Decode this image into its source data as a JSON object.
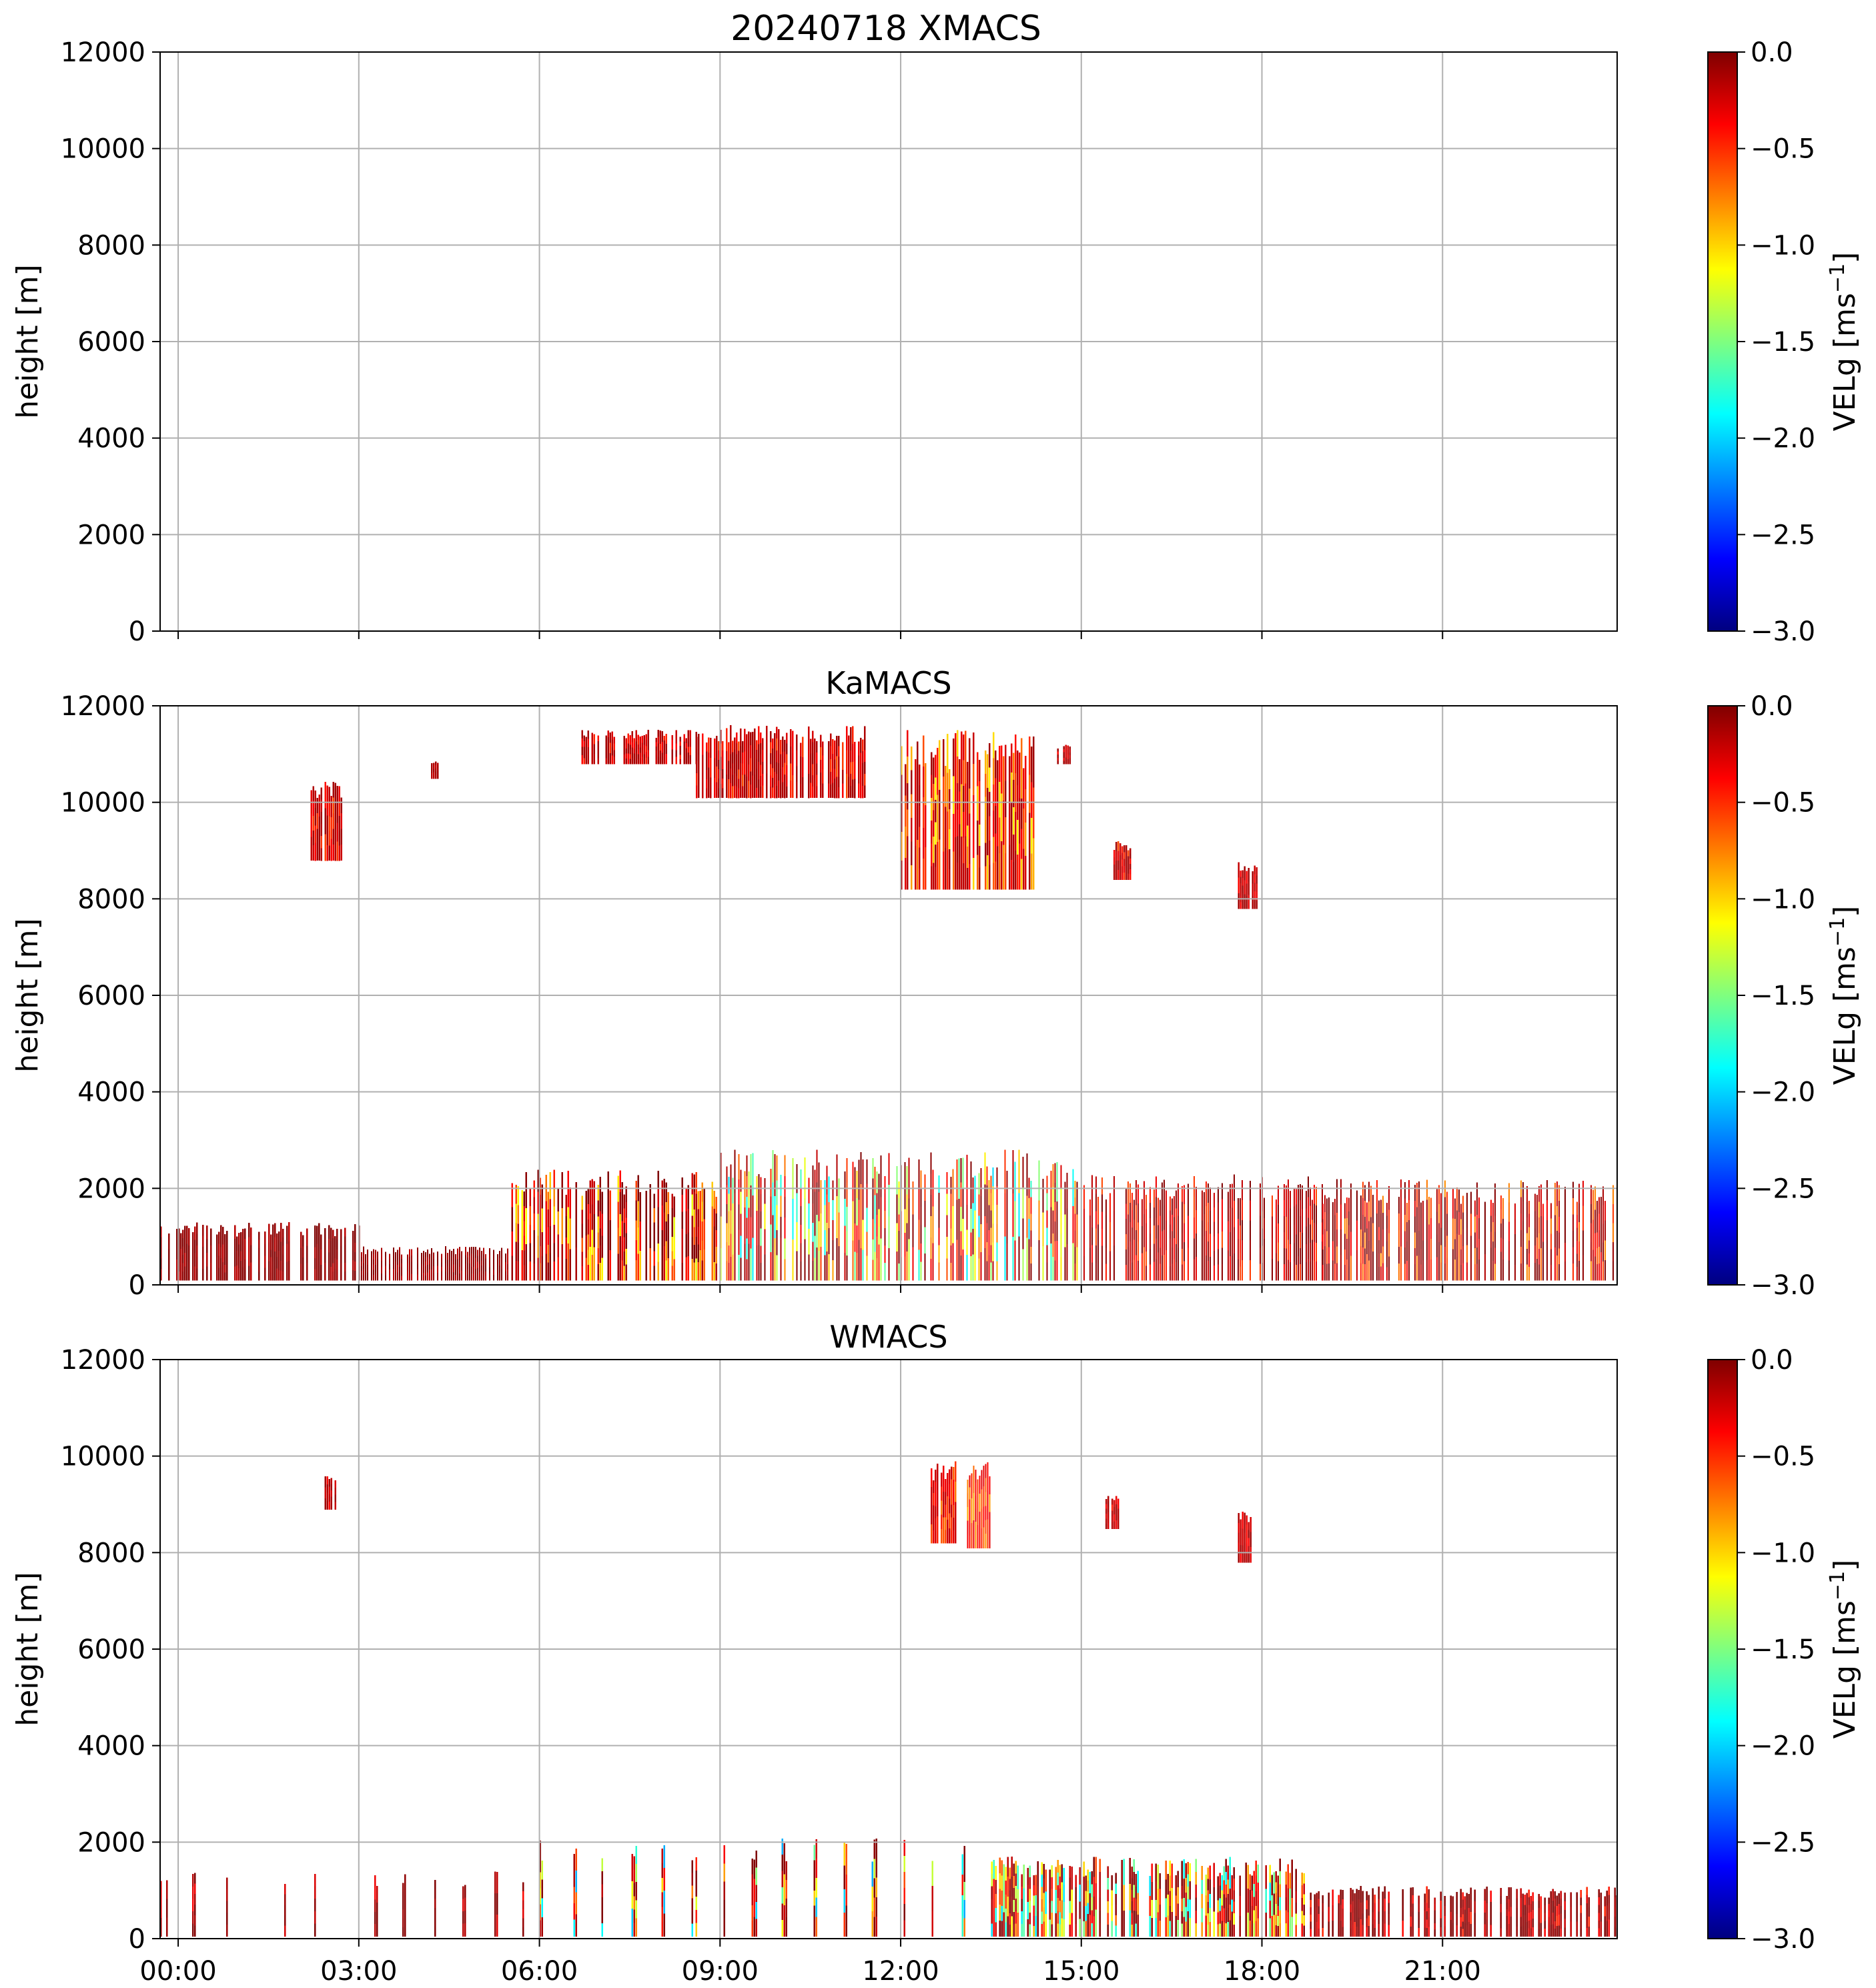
{
  "figure": {
    "title": "20240718 XMACS"
  },
  "colormap": {
    "name": "jet",
    "stops": [
      "#00007f",
      "#0000ff",
      "#007fff",
      "#00ffff",
      "#7fff7f",
      "#ffff00",
      "#ff7f00",
      "#ff0000",
      "#7f0000"
    ]
  },
  "chart_data": [
    {
      "type": "heatmap",
      "title": "",
      "xlabel": "",
      "ylabel": "height [m]",
      "xlim": [
        -0.3,
        23.9
      ],
      "ylim": [
        0,
        12000
      ],
      "xticks": [
        0,
        3,
        6,
        9,
        12,
        15,
        18,
        21
      ],
      "xtick_labels": [],
      "yticks": [
        0,
        2000,
        4000,
        6000,
        8000,
        10000,
        12000
      ],
      "ytick_labels": [
        "0",
        "2000",
        "4000",
        "6000",
        "8000",
        "10000",
        "12000"
      ],
      "grid": true,
      "colorbar": {
        "label": "VELg [ms",
        "label_sup": "−1",
        "label_end": "]",
        "range": [
          -3.0,
          0.0
        ],
        "ticks": [
          0.0,
          -0.5,
          -1.0,
          -1.5,
          -2.0,
          -2.5,
          -3.0
        ],
        "tick_labels": [
          "0.0",
          "−0.5",
          "−1.0",
          "−1.5",
          "−2.0",
          "−2.5",
          "−3.0"
        ]
      },
      "regions": []
    },
    {
      "type": "heatmap",
      "title": "KaMACS",
      "xlabel": "",
      "ylabel": "height [m]",
      "xlim": [
        -0.3,
        23.9
      ],
      "ylim": [
        0,
        12000
      ],
      "xticks": [
        0,
        3,
        6,
        9,
        12,
        15,
        18,
        21
      ],
      "xtick_labels": [],
      "yticks": [
        0,
        2000,
        4000,
        6000,
        8000,
        10000,
        12000
      ],
      "ytick_labels": [
        "0",
        "2000",
        "4000",
        "6000",
        "8000",
        "10000",
        "12000"
      ],
      "grid": true,
      "colorbar": {
        "label": "VELg [ms",
        "label_sup": "−1",
        "label_end": "]",
        "range": [
          -3.0,
          0.0
        ],
        "ticks": [
          0.0,
          -0.5,
          -1.0,
          -1.5,
          -2.0,
          -2.5,
          -3.0
        ],
        "tick_labels": [
          "0.0",
          "−0.5",
          "−1.0",
          "−1.5",
          "−2.0",
          "−2.5",
          "−3.0"
        ]
      },
      "regions": [
        {
          "name": "boundary-layer-early",
          "t0": -0.3,
          "t1": 3.0,
          "h0": 100,
          "h1": 1300,
          "vmin": -0.2,
          "vmax": 0.0,
          "density": 0.7
        },
        {
          "name": "boundary-layer-low",
          "t0": 3.0,
          "t1": 5.5,
          "h0": 100,
          "h1": 800,
          "vmin": -0.2,
          "vmax": 0.0,
          "density": 0.7
        },
        {
          "name": "boundary-layer-rising",
          "t0": 5.5,
          "t1": 9.0,
          "h0": 100,
          "h1": 2400,
          "vmin": -1.2,
          "vmax": 0.0,
          "density": 0.6
        },
        {
          "name": "boundary-layer-peak",
          "t0": 9.0,
          "t1": 15.0,
          "h0": 100,
          "h1": 2800,
          "vmin": -2.0,
          "vmax": 0.0,
          "density": 0.65
        },
        {
          "name": "boundary-layer-late",
          "t0": 15.0,
          "t1": 19.0,
          "h0": 100,
          "h1": 2300,
          "vmin": -0.6,
          "vmax": 0.0,
          "density": 0.7
        },
        {
          "name": "boundary-layer-evening",
          "t0": 19.0,
          "t1": 23.9,
          "h0": 100,
          "h1": 2200,
          "vmin": -0.8,
          "vmax": 0.0,
          "density": 0.6
        },
        {
          "name": "cirrus-0245",
          "t0": 2.2,
          "t1": 2.7,
          "h0": 8800,
          "h1": 10500,
          "vmin": -0.6,
          "vmax": -0.1,
          "density": 0.9
        },
        {
          "name": "cirrus-0330",
          "t0": 4.2,
          "t1": 4.3,
          "h0": 10500,
          "h1": 10900,
          "vmin": -0.3,
          "vmax": -0.1,
          "density": 0.9
        },
        {
          "name": "cirrus-0630",
          "t0": 6.7,
          "t1": 8.6,
          "h0": 10800,
          "h1": 11500,
          "vmin": -0.5,
          "vmax": -0.1,
          "density": 0.7
        },
        {
          "name": "cirrus-0930",
          "t0": 8.6,
          "t1": 11.4,
          "h0": 10100,
          "h1": 11600,
          "vmin": -0.6,
          "vmax": -0.1,
          "density": 0.75
        },
        {
          "name": "cirrus-1300",
          "t0": 12.0,
          "t1": 14.2,
          "h0": 8200,
          "h1": 11500,
          "vmin": -1.1,
          "vmax": -0.1,
          "density": 0.75
        },
        {
          "name": "cirrus-1500",
          "t0": 14.6,
          "t1": 14.8,
          "h0": 10800,
          "h1": 11200,
          "vmin": -0.4,
          "vmax": -0.1,
          "density": 0.8
        },
        {
          "name": "cirrus-1530",
          "t0": 15.5,
          "t1": 15.8,
          "h0": 8400,
          "h1": 9200,
          "vmin": -0.6,
          "vmax": -0.1,
          "density": 0.8
        },
        {
          "name": "cirrus-1730",
          "t0": 17.6,
          "t1": 17.9,
          "h0": 7800,
          "h1": 8800,
          "vmin": -0.4,
          "vmax": -0.1,
          "density": 0.8
        }
      ]
    },
    {
      "type": "heatmap",
      "title": "WMACS",
      "xlabel": "",
      "ylabel": "height [m]",
      "xlim": [
        -0.3,
        23.9
      ],
      "ylim": [
        0,
        12000
      ],
      "xticks": [
        0,
        3,
        6,
        9,
        12,
        15,
        18,
        21
      ],
      "xtick_labels": [
        "00:00",
        "03:00",
        "06:00",
        "09:00",
        "12:00",
        "15:00",
        "18:00",
        "21:00"
      ],
      "yticks": [
        0,
        2000,
        4000,
        6000,
        8000,
        10000,
        12000
      ],
      "ytick_labels": [
        "0",
        "2000",
        "4000",
        "6000",
        "8000",
        "10000",
        "12000"
      ],
      "grid": true,
      "colorbar": {
        "label": "VELg [ms",
        "label_sup": "−1",
        "label_end": "]",
        "range": [
          -3.0,
          0.0
        ],
        "ticks": [
          0.0,
          -0.5,
          -1.0,
          -1.5,
          -2.0,
          -2.5,
          -3.0
        ],
        "tick_labels": [
          "0.0",
          "−0.5",
          "−1.0",
          "−1.5",
          "−2.0",
          "−2.5",
          "−3.0"
        ]
      },
      "regions": [
        {
          "name": "scan-columns-morning",
          "t0": -0.3,
          "t1": 6.0,
          "h0": 50,
          "h1": 1400,
          "vmin": -0.4,
          "vmax": 0.0,
          "density": 0.35,
          "periodic": 0.5
        },
        {
          "name": "scan-columns-midday",
          "t0": 6.0,
          "t1": 13.5,
          "h0": 50,
          "h1": 2100,
          "vmin": -2.2,
          "vmax": 0.0,
          "density": 0.6,
          "periodic": 0.5
        },
        {
          "name": "boundary-layer-afternoon",
          "t0": 13.5,
          "t1": 18.8,
          "h0": 50,
          "h1": 1700,
          "vmin": -2.0,
          "vmax": 0.0,
          "density": 0.6
        },
        {
          "name": "boundary-layer-evening",
          "t0": 18.8,
          "t1": 23.9,
          "h0": 50,
          "h1": 1100,
          "vmin": -0.5,
          "vmax": 0.0,
          "density": 0.5
        },
        {
          "name": "cirrus-0245",
          "t0": 2.4,
          "t1": 2.6,
          "h0": 8900,
          "h1": 9600,
          "vmin": -0.4,
          "vmax": -0.1,
          "density": 0.9
        },
        {
          "name": "cirrus-1300",
          "t0": 12.5,
          "t1": 12.9,
          "h0": 8200,
          "h1": 9900,
          "vmin": -0.8,
          "vmax": -0.2,
          "density": 0.85
        },
        {
          "name": "cirrus-1330",
          "t0": 13.1,
          "t1": 13.5,
          "h0": 8100,
          "h1": 9900,
          "vmin": -0.9,
          "vmax": -0.3,
          "density": 0.85
        },
        {
          "name": "cirrus-1530",
          "t0": 15.4,
          "t1": 15.6,
          "h0": 8500,
          "h1": 9200,
          "vmin": -0.5,
          "vmax": -0.1,
          "density": 0.85
        },
        {
          "name": "cirrus-1730",
          "t0": 17.6,
          "t1": 17.8,
          "h0": 7800,
          "h1": 8900,
          "vmin": -0.4,
          "vmax": -0.1,
          "density": 0.85
        }
      ]
    }
  ]
}
